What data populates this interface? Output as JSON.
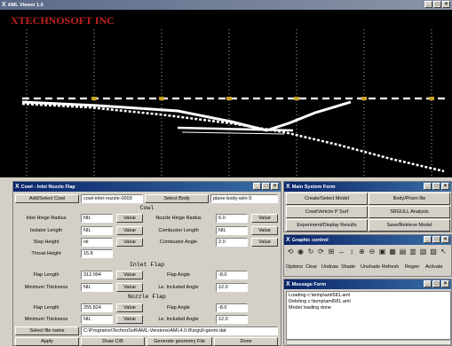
{
  "viewer": {
    "title": "AML Viewer 1.0",
    "logo": "XTECHNOSOFT INC",
    "window_buttons": [
      "_",
      "□",
      "×"
    ]
  },
  "cowl": {
    "title": "Cowl - Inlet Nozzle Flap",
    "window_buttons": [
      "_",
      "□",
      "×"
    ],
    "add_select_cowl": "Add/Select Cowl",
    "cowl_name": "cowl-inlet-nozzle-0003",
    "select_body": "Select Body",
    "body_name": "plane-body-wiin-5",
    "cowl_section": "Cowl",
    "inlet_hinge_radius": {
      "label": "Inlet Hinge Radius",
      "value": "NIL"
    },
    "isolator_length": {
      "label": "Isolator Length",
      "value": "NIL"
    },
    "step_height": {
      "label": "Step Height",
      "value": "nil"
    },
    "throat_height": {
      "label": "Throat Height",
      "value": "15.8"
    },
    "nozzle_hinge_radius": {
      "label": "Nozzle Hinge Radius",
      "value": "6.0"
    },
    "combustor_length": {
      "label": "Combustor Length",
      "value": "NIL"
    },
    "combustor_angle": {
      "label": "Combustor Angle",
      "value": "2.0"
    },
    "value_label": "Value",
    "inlet_flap_section": "Inlet Flap",
    "inlet_flap_length": {
      "label": "Flap Length",
      "value": "312.094"
    },
    "inlet_min_thickness": {
      "label": "Minimum Thickness",
      "value": "NIL"
    },
    "inlet_flap_angle": {
      "label": "Flap Angle",
      "value": "-8.0"
    },
    "inlet_included_angle": {
      "label": "Le. Included Angle",
      "value": "12.0"
    },
    "nozzle_flap_section": "Nozzle Flap",
    "nozzle_flap_length": {
      "label": "Flap Length",
      "value": "255.824"
    },
    "nozzle_min_thickness": {
      "label": "Minimum Thickness",
      "value": "NIL"
    },
    "nozzle_flap_angle": {
      "label": "Flap Angle",
      "value": "-8.0"
    },
    "nozzle_included_angle": {
      "label": "Le. Included Angle",
      "value": "12.0"
    },
    "select_file_name": "Select file name",
    "file_path": "C:\\Programs\\TechnoSoft\\AML-Versions\\AML4.0-8\\srgull-geom.dat",
    "apply": "Apply",
    "draw_cb": "Draw C/B",
    "generate_geometry": "Generate geometry File",
    "done": "Done"
  },
  "main_form": {
    "title": "Main System Form",
    "window_buttons": [
      "_",
      "□",
      "×"
    ],
    "buttons": [
      "Create/Select Model",
      "Body/Prism file",
      "Cowl/Vehicle P Surf",
      "SRGULL Analysis",
      "Experiment/Display Results",
      "Save/Retrieve Model"
    ]
  },
  "graphic_control": {
    "title": "Graphic control",
    "window_buttons": [
      "_",
      "□",
      "×"
    ],
    "icons": [
      "refresh-icon",
      "camera-icon",
      "rotate-icon",
      "spin-icon",
      "zoom-box-icon",
      "pan-horizontal-icon",
      "pan-vertical-icon",
      "zoom-in-icon",
      "zoom-out-icon",
      "fit-icon",
      "grid-icon",
      "view-front-icon",
      "view-side-icon",
      "view-top-icon",
      "view-iso-icon",
      "select-icon"
    ],
    "icon_glyphs": [
      "⟲",
      "◉",
      "↻",
      "⟳",
      "⊞",
      "↔",
      "↕",
      "⊕",
      "⊖",
      "▣",
      "▦",
      "▤",
      "▥",
      "▧",
      "▨",
      "↖"
    ],
    "actions": [
      "Options",
      "Clear",
      "Undraw",
      "Shade",
      "Unshade",
      "Refresh",
      "Regen",
      "Activate"
    ]
  },
  "message_form": {
    "title": "Message Form",
    "window_buttons": [
      "_",
      "□",
      "×"
    ],
    "lines": [
      "Loading c:\\temp\\aml581.aml",
      "Deleting c:\\temp\\aml581.aml",
      "Model loading done"
    ]
  },
  "colors": {
    "viewer_bg": "#000000",
    "geometry": "#ffffff",
    "marker": "#c8a020",
    "title_bar": "#0a246a"
  }
}
